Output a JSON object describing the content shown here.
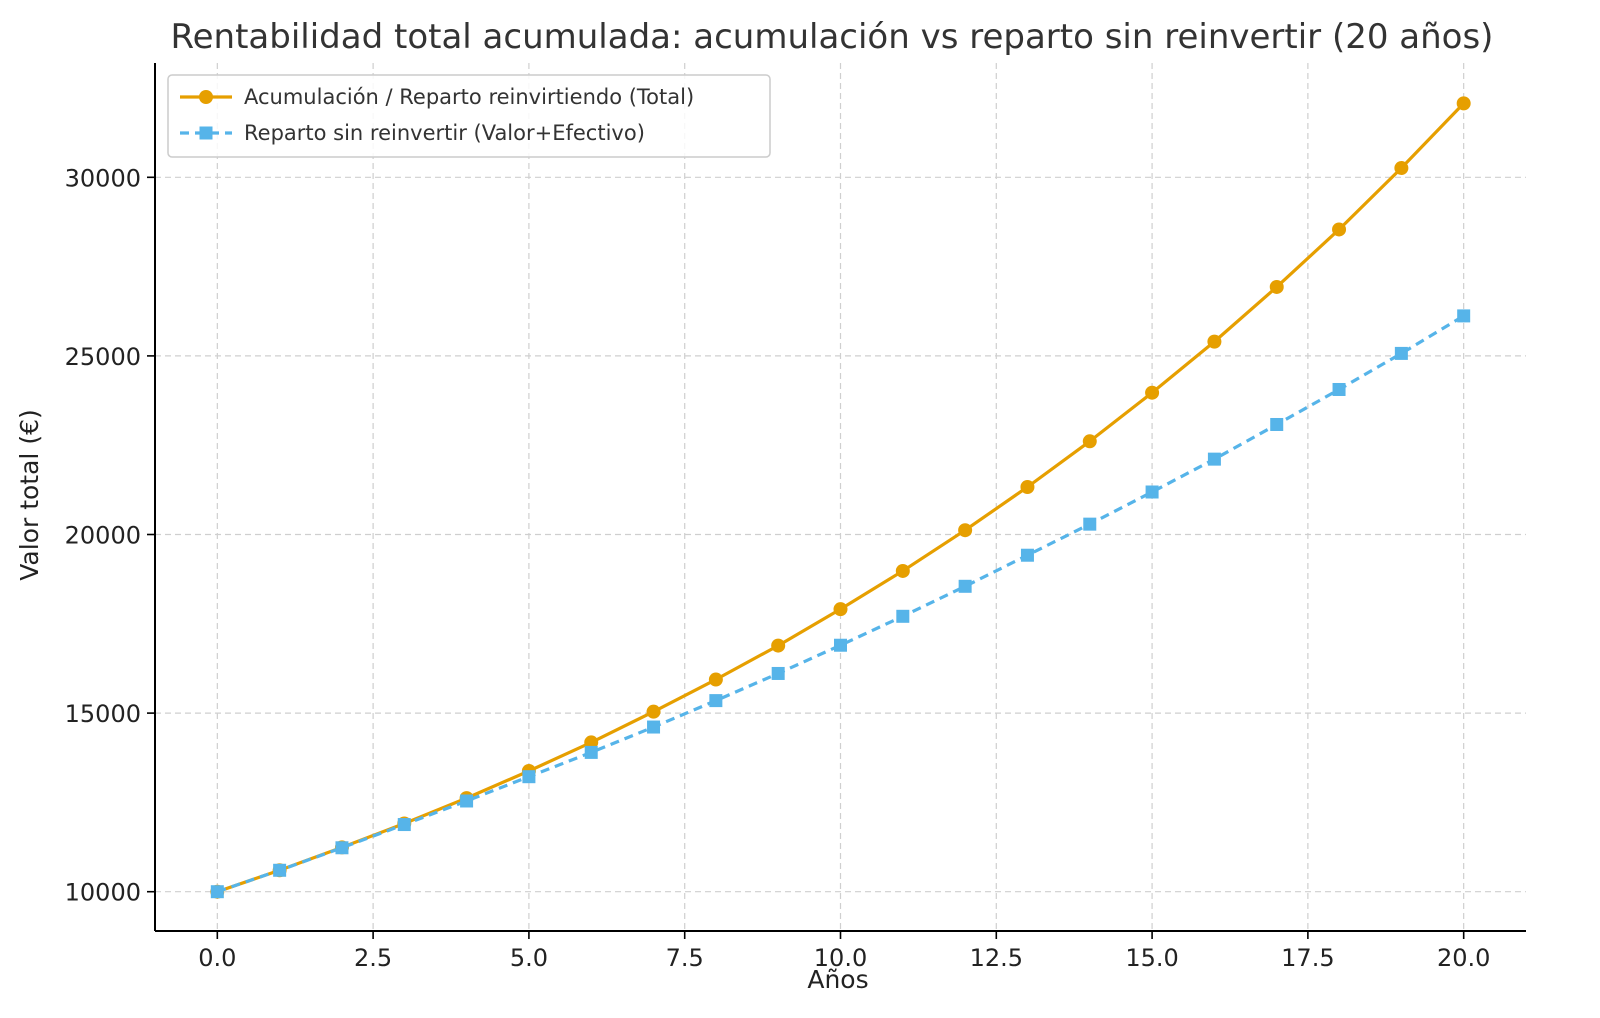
{
  "chart_data": {
    "type": "line",
    "title": "Rentabilidad total acumulada: acumulación vs reparto sin reinvertir (20 años)",
    "xlabel": "Años",
    "ylabel": "Valor total (€)",
    "xlim": [
      -1,
      21
    ],
    "ylim": [
      8900,
      33200
    ],
    "x_ticks": [
      0,
      2.5,
      5,
      7.5,
      10,
      12.5,
      15,
      17.5,
      20
    ],
    "x_tick_labels": [
      "0.0",
      "2.5",
      "5.0",
      "7.5",
      "10.0",
      "12.5",
      "15.0",
      "17.5",
      "20.0"
    ],
    "y_ticks": [
      10000,
      15000,
      20000,
      25000,
      30000
    ],
    "y_tick_labels": [
      "10000",
      "15000",
      "20000",
      "25000",
      "30000"
    ],
    "grid": true,
    "legend_position": "top-left",
    "x": [
      0,
      1,
      2,
      3,
      4,
      5,
      6,
      7,
      8,
      9,
      10,
      11,
      12,
      13,
      14,
      15,
      16,
      17,
      18,
      19,
      20
    ],
    "series": [
      {
        "name": "Acumulación / Reparto reinvirtiendo (Total)",
        "color": "#E69F00",
        "marker": "circle",
        "line_style": "solid",
        "values": [
          10000,
          10600,
          11240,
          11910,
          12620,
          13380,
          14180,
          15040,
          15940,
          16890,
          17910,
          18980,
          20120,
          21330,
          22610,
          23970,
          25400,
          26930,
          28540,
          30260,
          32070
        ]
      },
      {
        "name": "Reparto sin reinvertir (Valor+Efectivo)",
        "color": "#56B4E9",
        "marker": "square",
        "line_style": "dashed",
        "values": [
          10000,
          10600,
          11230,
          11880,
          12540,
          13220,
          13900,
          14610,
          15350,
          16110,
          16900,
          17710,
          18550,
          19420,
          20290,
          21190,
          22110,
          23080,
          24060,
          25070,
          26120
        ]
      }
    ]
  }
}
